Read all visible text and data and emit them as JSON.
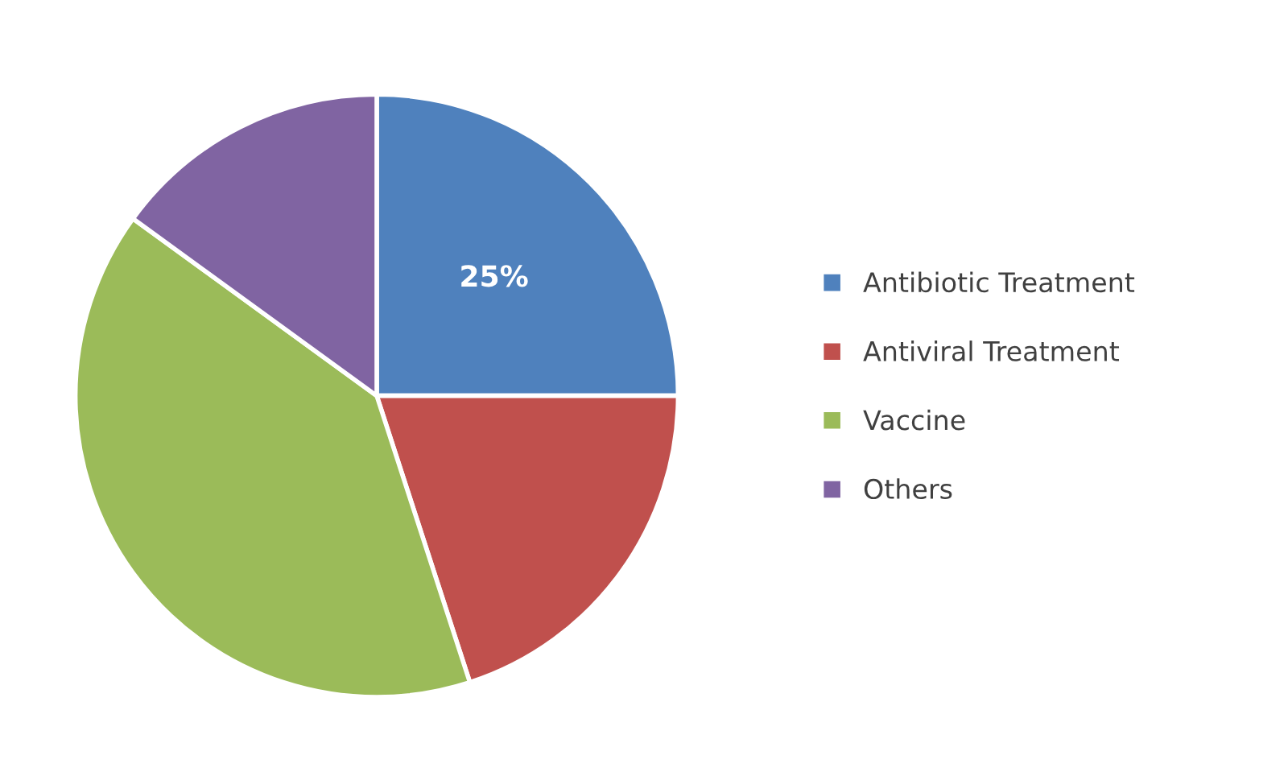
{
  "chart_data": {
    "type": "pie",
    "categories": [
      "Antibiotic Treatment",
      "Antiviral Treatment",
      "Vaccine",
      "Others"
    ],
    "values": [
      25,
      20,
      40,
      15
    ],
    "colors": [
      "#4f81bd",
      "#c0504d",
      "#9bbb59",
      "#8064a2"
    ],
    "value_labels": [
      "25%",
      null,
      null,
      null
    ],
    "legend": "right"
  }
}
